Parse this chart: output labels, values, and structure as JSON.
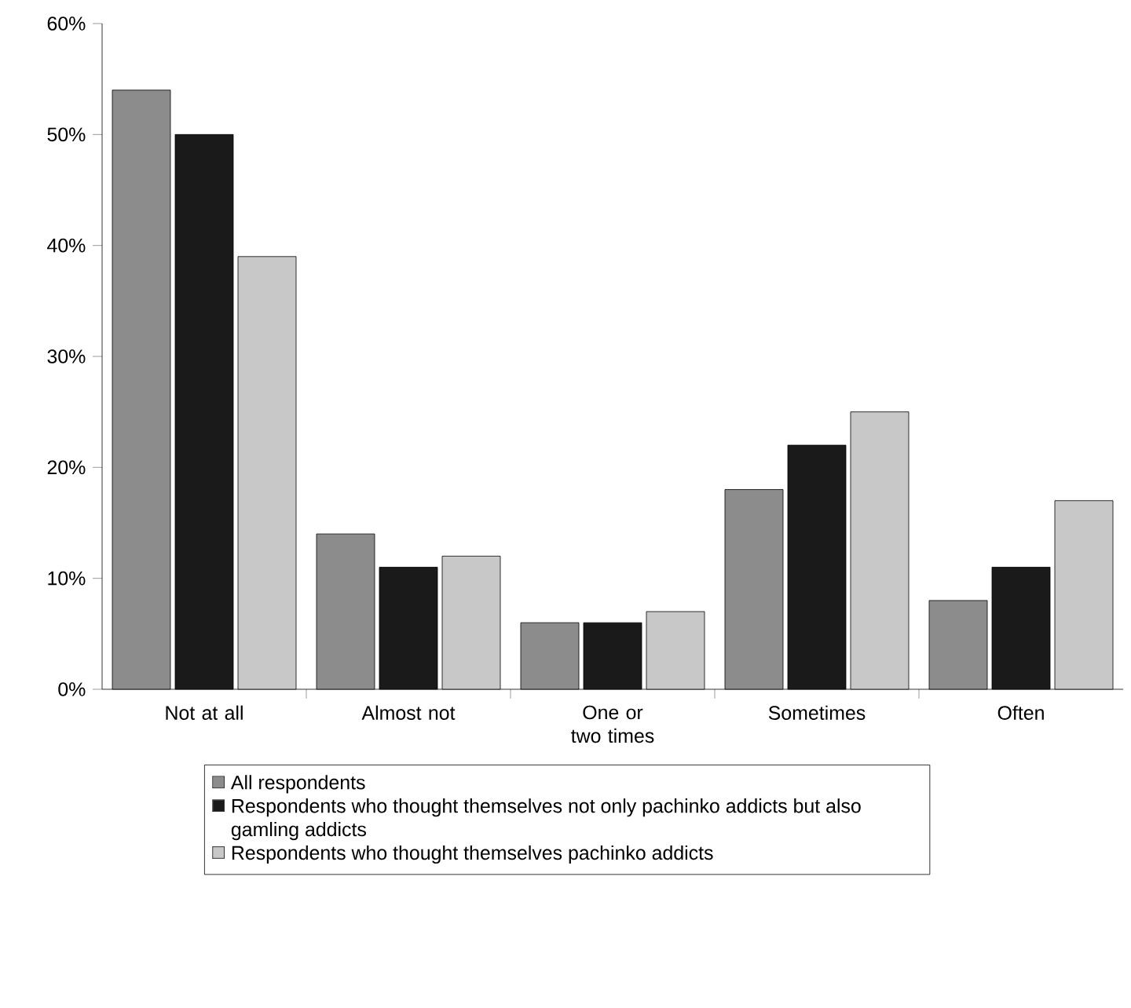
{
  "chart_data": {
    "type": "bar",
    "categories": [
      "Not at all",
      "Almost not",
      "One or two times",
      "Sometimes",
      "Often"
    ],
    "series": [
      {
        "name": "All respondents",
        "color": "#8c8c8c",
        "values": [
          54,
          14,
          6,
          18,
          8
        ]
      },
      {
        "name": "Respondents who thought themselves not only  pachinko addicts but also gamling addicts",
        "color": "#1a1a1a",
        "values": [
          50,
          11,
          6,
          22,
          11
        ]
      },
      {
        "name": "Respondents who thought themselves pachinko addicts",
        "color": "#c8c8c8",
        "values": [
          39,
          12,
          7,
          25,
          17
        ]
      }
    ],
    "ylim": [
      0,
      60
    ],
    "yticks": [
      {
        "value": 0,
        "label": "0%"
      },
      {
        "value": 10,
        "label": "10%"
      },
      {
        "value": 20,
        "label": "20%"
      },
      {
        "value": 30,
        "label": "30%"
      },
      {
        "value": 40,
        "label": "40%"
      },
      {
        "value": 50,
        "label": "50%"
      },
      {
        "value": 60,
        "label": "60%"
      }
    ],
    "legend": "bottom"
  }
}
